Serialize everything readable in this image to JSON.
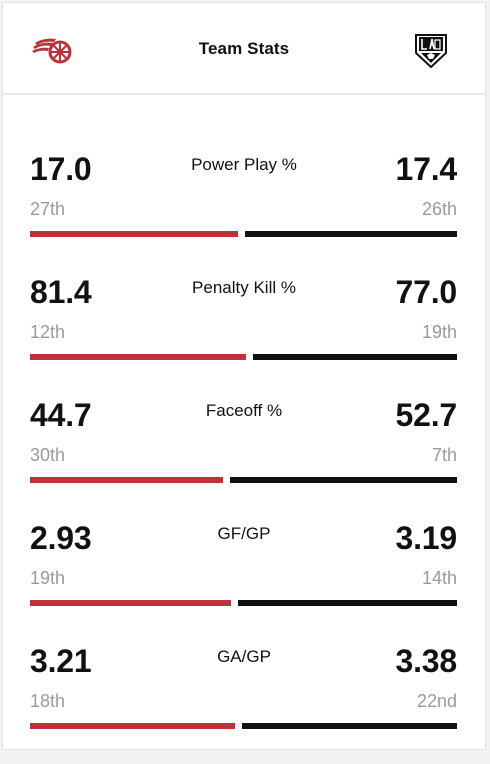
{
  "header": {
    "title": "Team Stats",
    "left_team_logo": "detroit-red-wings-logo",
    "right_team_logo": "la-kings-logo"
  },
  "colors": {
    "left_team": "#c0303a",
    "right_team": "#111111",
    "rank_text": "#9a9a9a"
  },
  "stats": [
    {
      "label": "Power Play %",
      "left_value": "17.0",
      "left_rank": "27th",
      "right_value": "17.4",
      "right_rank": "26th",
      "left_share": 0.495
    },
    {
      "label": "Penalty Kill %",
      "left_value": "81.4",
      "left_rank": "12th",
      "right_value": "77.0",
      "right_rank": "19th",
      "left_share": 0.514
    },
    {
      "label": "Faceoff %",
      "left_value": "44.7",
      "left_rank": "30th",
      "right_value": "52.7",
      "right_rank": "7th",
      "left_share": 0.459
    },
    {
      "label": "GF/GP",
      "left_value": "2.93",
      "left_rank": "19th",
      "right_value": "3.19",
      "right_rank": "14th",
      "left_share": 0.479
    },
    {
      "label": "GA/GP",
      "left_value": "3.21",
      "left_rank": "18th",
      "right_value": "3.38",
      "right_rank": "22nd",
      "left_share": 0.487
    }
  ]
}
